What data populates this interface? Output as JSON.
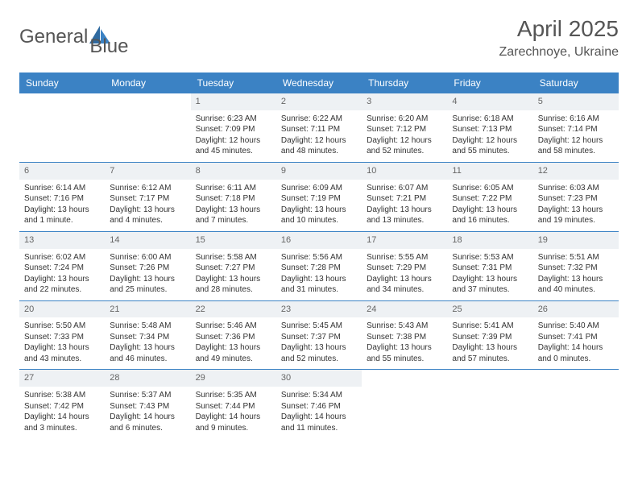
{
  "logo": {
    "text1": "General",
    "text2": "Blue"
  },
  "title": "April 2025",
  "location": "Zarechnoye, Ukraine",
  "colors": {
    "header_bg": "#3b82c4",
    "header_text": "#ffffff",
    "daynum_bg": "#eef1f4",
    "daynum_text": "#666666",
    "body_text": "#333333",
    "rule": "#3b82c4",
    "logo_accent": "#3b82c4"
  },
  "day_names": [
    "Sunday",
    "Monday",
    "Tuesday",
    "Wednesday",
    "Thursday",
    "Friday",
    "Saturday"
  ],
  "weeks": [
    [
      {
        "n": "",
        "empty": true
      },
      {
        "n": "",
        "empty": true
      },
      {
        "n": "1",
        "sunrise": "6:23 AM",
        "sunset": "7:09 PM",
        "daylight": "12 hours and 45 minutes."
      },
      {
        "n": "2",
        "sunrise": "6:22 AM",
        "sunset": "7:11 PM",
        "daylight": "12 hours and 48 minutes."
      },
      {
        "n": "3",
        "sunrise": "6:20 AM",
        "sunset": "7:12 PM",
        "daylight": "12 hours and 52 minutes."
      },
      {
        "n": "4",
        "sunrise": "6:18 AM",
        "sunset": "7:13 PM",
        "daylight": "12 hours and 55 minutes."
      },
      {
        "n": "5",
        "sunrise": "6:16 AM",
        "sunset": "7:14 PM",
        "daylight": "12 hours and 58 minutes."
      }
    ],
    [
      {
        "n": "6",
        "sunrise": "6:14 AM",
        "sunset": "7:16 PM",
        "daylight": "13 hours and 1 minute."
      },
      {
        "n": "7",
        "sunrise": "6:12 AM",
        "sunset": "7:17 PM",
        "daylight": "13 hours and 4 minutes."
      },
      {
        "n": "8",
        "sunrise": "6:11 AM",
        "sunset": "7:18 PM",
        "daylight": "13 hours and 7 minutes."
      },
      {
        "n": "9",
        "sunrise": "6:09 AM",
        "sunset": "7:19 PM",
        "daylight": "13 hours and 10 minutes."
      },
      {
        "n": "10",
        "sunrise": "6:07 AM",
        "sunset": "7:21 PM",
        "daylight": "13 hours and 13 minutes."
      },
      {
        "n": "11",
        "sunrise": "6:05 AM",
        "sunset": "7:22 PM",
        "daylight": "13 hours and 16 minutes."
      },
      {
        "n": "12",
        "sunrise": "6:03 AM",
        "sunset": "7:23 PM",
        "daylight": "13 hours and 19 minutes."
      }
    ],
    [
      {
        "n": "13",
        "sunrise": "6:02 AM",
        "sunset": "7:24 PM",
        "daylight": "13 hours and 22 minutes."
      },
      {
        "n": "14",
        "sunrise": "6:00 AM",
        "sunset": "7:26 PM",
        "daylight": "13 hours and 25 minutes."
      },
      {
        "n": "15",
        "sunrise": "5:58 AM",
        "sunset": "7:27 PM",
        "daylight": "13 hours and 28 minutes."
      },
      {
        "n": "16",
        "sunrise": "5:56 AM",
        "sunset": "7:28 PM",
        "daylight": "13 hours and 31 minutes."
      },
      {
        "n": "17",
        "sunrise": "5:55 AM",
        "sunset": "7:29 PM",
        "daylight": "13 hours and 34 minutes."
      },
      {
        "n": "18",
        "sunrise": "5:53 AM",
        "sunset": "7:31 PM",
        "daylight": "13 hours and 37 minutes."
      },
      {
        "n": "19",
        "sunrise": "5:51 AM",
        "sunset": "7:32 PM",
        "daylight": "13 hours and 40 minutes."
      }
    ],
    [
      {
        "n": "20",
        "sunrise": "5:50 AM",
        "sunset": "7:33 PM",
        "daylight": "13 hours and 43 minutes."
      },
      {
        "n": "21",
        "sunrise": "5:48 AM",
        "sunset": "7:34 PM",
        "daylight": "13 hours and 46 minutes."
      },
      {
        "n": "22",
        "sunrise": "5:46 AM",
        "sunset": "7:36 PM",
        "daylight": "13 hours and 49 minutes."
      },
      {
        "n": "23",
        "sunrise": "5:45 AM",
        "sunset": "7:37 PM",
        "daylight": "13 hours and 52 minutes."
      },
      {
        "n": "24",
        "sunrise": "5:43 AM",
        "sunset": "7:38 PM",
        "daylight": "13 hours and 55 minutes."
      },
      {
        "n": "25",
        "sunrise": "5:41 AM",
        "sunset": "7:39 PM",
        "daylight": "13 hours and 57 minutes."
      },
      {
        "n": "26",
        "sunrise": "5:40 AM",
        "sunset": "7:41 PM",
        "daylight": "14 hours and 0 minutes."
      }
    ],
    [
      {
        "n": "27",
        "sunrise": "5:38 AM",
        "sunset": "7:42 PM",
        "daylight": "14 hours and 3 minutes."
      },
      {
        "n": "28",
        "sunrise": "5:37 AM",
        "sunset": "7:43 PM",
        "daylight": "14 hours and 6 minutes."
      },
      {
        "n": "29",
        "sunrise": "5:35 AM",
        "sunset": "7:44 PM",
        "daylight": "14 hours and 9 minutes."
      },
      {
        "n": "30",
        "sunrise": "5:34 AM",
        "sunset": "7:46 PM",
        "daylight": "14 hours and 11 minutes."
      },
      {
        "n": "",
        "empty": true
      },
      {
        "n": "",
        "empty": true
      },
      {
        "n": "",
        "empty": true
      }
    ]
  ],
  "labels": {
    "sunrise": "Sunrise:",
    "sunset": "Sunset:",
    "daylight": "Daylight:"
  }
}
